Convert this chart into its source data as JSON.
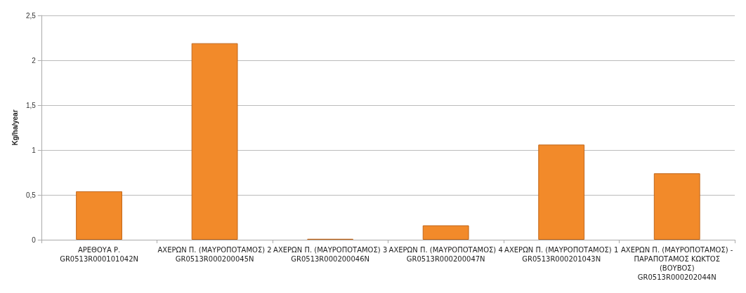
{
  "chart_data": {
    "type": "bar",
    "ylabel": "Kg/ha/year",
    "categories": [
      "ΑΡΕΘΟΥΑ Ρ.\nGR0513R000101042N",
      "ΑΧΕΡΩΝ Π. (ΜΑΥΡΟΠΟΤΑΜΟΣ) 2\nGR0513R000200045N",
      "ΑΧΕΡΩΝ Π. (ΜΑΥΡΟΠΟΤΑΜΟΣ) 3\nGR0513R000200046N",
      "ΑΧΕΡΩΝ Π. (ΜΑΥΡΟΠΟΤΑΜΟΣ) 4\nGR0513R000200047N",
      "ΑΧΕΡΩΝ Π. (ΜΑΥΡΟΠΟΤΑΜΟΣ) 1\nGR0513R000201043N",
      "ΑΧΕΡΩΝ Π. (ΜΑΥΡΟΠΟΤΑΜΟΣ) -\nΠΑΡΑΠΟΤΑΜΟΣ ΚΩΚΤΟΣ\n(ΒΟΥΒΟΣ)\nGR0513R000202044N"
    ],
    "values": [
      0.54,
      2.19,
      0.01,
      0.16,
      1.06,
      0.74
    ],
    "color": "#f28a2a",
    "ylim": [
      0,
      2.5
    ],
    "yticks": [
      0,
      {
        "value": 0.5,
        "label": "0,5"
      },
      1,
      {
        "value": 1.5,
        "label": "1,5"
      },
      2,
      {
        "value": 2.5,
        "label": "2,5"
      }
    ],
    "grid": "y"
  }
}
